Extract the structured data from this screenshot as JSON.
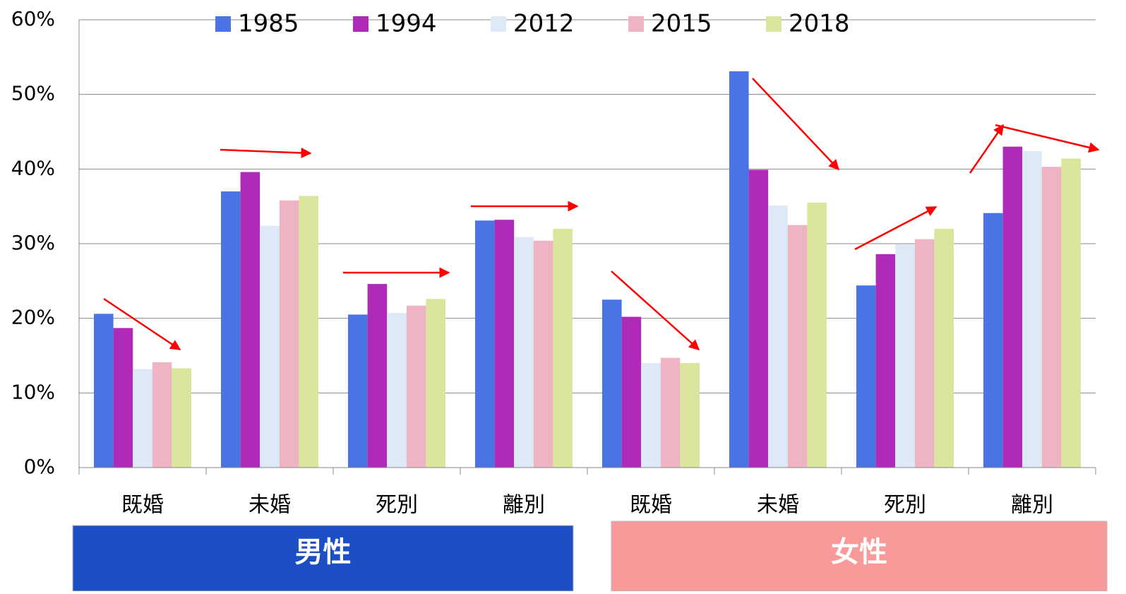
{
  "chart_data": {
    "type": "bar",
    "categories": [
      "既婚",
      "未婚",
      "死別",
      "離別",
      "既婚",
      "未婚",
      "死別",
      "離別"
    ],
    "series": [
      {
        "name": "1985",
        "color": "#4a74e4",
        "values": [
          20.6,
          37.0,
          20.5,
          33.1,
          22.5,
          53.1,
          24.4,
          34.1
        ]
      },
      {
        "name": "1994",
        "color": "#b02ab8",
        "values": [
          18.7,
          39.6,
          24.6,
          33.2,
          20.2,
          39.9,
          28.6,
          43.0
        ]
      },
      {
        "name": "2012",
        "color": "#dde9f6",
        "values": [
          13.2,
          32.4,
          20.7,
          30.9,
          14.0,
          35.1,
          29.9,
          42.4
        ]
      },
      {
        "name": "2015",
        "color": "#eeb4c4",
        "values": [
          14.1,
          35.8,
          21.7,
          30.4,
          14.7,
          32.5,
          30.6,
          40.3
        ]
      },
      {
        "name": "2018",
        "color": "#dbe59c",
        "values": [
          13.3,
          36.4,
          22.6,
          32.0,
          14.0,
          35.5,
          32.0,
          41.4
        ]
      }
    ],
    "ylim": [
      0,
      60
    ],
    "yticks": [
      {
        "value": 0,
        "label": "0%"
      },
      {
        "value": 10,
        "label": "10%"
      },
      {
        "value": 20,
        "label": "20%"
      },
      {
        "value": 30,
        "label": "30%"
      },
      {
        "value": 40,
        "label": "40%"
      },
      {
        "value": 50,
        "label": "50%"
      },
      {
        "value": 60,
        "label": "60%"
      }
    ],
    "grid": true,
    "groups": [
      {
        "label": "男性",
        "color": "#1c4ec4"
      },
      {
        "label": "女性",
        "color": "#f99a9a"
      }
    ]
  }
}
